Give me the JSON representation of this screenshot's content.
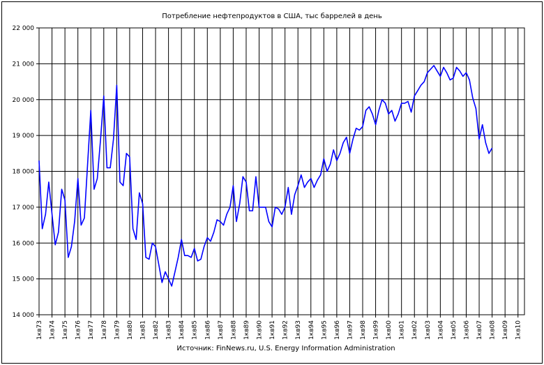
{
  "chart_data": {
    "type": "line",
    "title": "Потребление нефтепродуктов в США, тыс баррелей в день",
    "source": "Источник: FinNews.ru, U.S. Energy Information Administration",
    "xlabel": "",
    "ylabel": "",
    "ylim": [
      14000,
      22000
    ],
    "y_ticks": [
      "14 000",
      "15 000",
      "16 000",
      "17 000",
      "18 000",
      "19 000",
      "20 000",
      "21 000",
      "22 000"
    ],
    "x_ticks": [
      "1кв73",
      "1кв74",
      "1кв75",
      "1кв76",
      "1кв77",
      "1кв78",
      "1кв79",
      "1кв80",
      "1кв81",
      "1кв82",
      "1кв83",
      "1кв84",
      "1кв85",
      "1кв86",
      "1кв87",
      "1кв88",
      "1кв89",
      "1кв90",
      "1кв91",
      "1кв92",
      "1кв93",
      "1кв94",
      "1кв95",
      "1кв96",
      "1кв97",
      "1кв98",
      "1кв99",
      "1кв00",
      "1кв01",
      "1кв02",
      "1кв03",
      "1кв04",
      "1кв05",
      "1кв06",
      "1кв07",
      "1кв08",
      "1кв09",
      "1кв10"
    ],
    "grid": true,
    "line_color": "#0000ff",
    "series": [
      {
        "x_start": 1973.0,
        "x_step": 0.25,
        "values": [
          18300,
          16400,
          16800,
          17700,
          16800,
          15950,
          16300,
          17500,
          17200,
          15600,
          15900,
          16600,
          17800,
          16500,
          16700,
          18200,
          19700,
          17500,
          17800,
          18900,
          20100,
          18100,
          18100,
          18900,
          20400,
          17700,
          17600,
          18500,
          18400,
          16400,
          16100,
          17400,
          17100,
          15600,
          15550,
          16000,
          15900,
          15400,
          14900,
          15200,
          15000,
          14800,
          15200,
          15600,
          16100,
          15650,
          15650,
          15600,
          15850,
          15500,
          15550,
          15900,
          16150,
          16050,
          16300,
          16650,
          16600,
          16500,
          16800,
          17000,
          17600,
          16600,
          17100,
          17850,
          17700,
          16900,
          16900,
          17850,
          17000,
          17000,
          17000,
          16600,
          16450,
          17000,
          16950,
          16800,
          17000,
          17550,
          16800,
          17350,
          17600,
          17900,
          17550,
          17700,
          17800,
          17550,
          17750,
          17900,
          18350,
          18000,
          18200,
          18600,
          18300,
          18500,
          18800,
          18950,
          18500,
          18900,
          19200,
          19150,
          19250,
          19700,
          19800,
          19600,
          19300,
          19700,
          20000,
          19900,
          19600,
          19700,
          19400,
          19600,
          19900,
          19900,
          19950,
          19650,
          20100,
          20250,
          20400,
          20500,
          20750,
          20850,
          20950,
          20800,
          20650,
          20900,
          20750,
          20550,
          20600,
          20900,
          20800,
          20650,
          20750,
          20550,
          20050,
          19750,
          18900,
          19300,
          18800,
          18500,
          18650
        ]
      }
    ]
  }
}
